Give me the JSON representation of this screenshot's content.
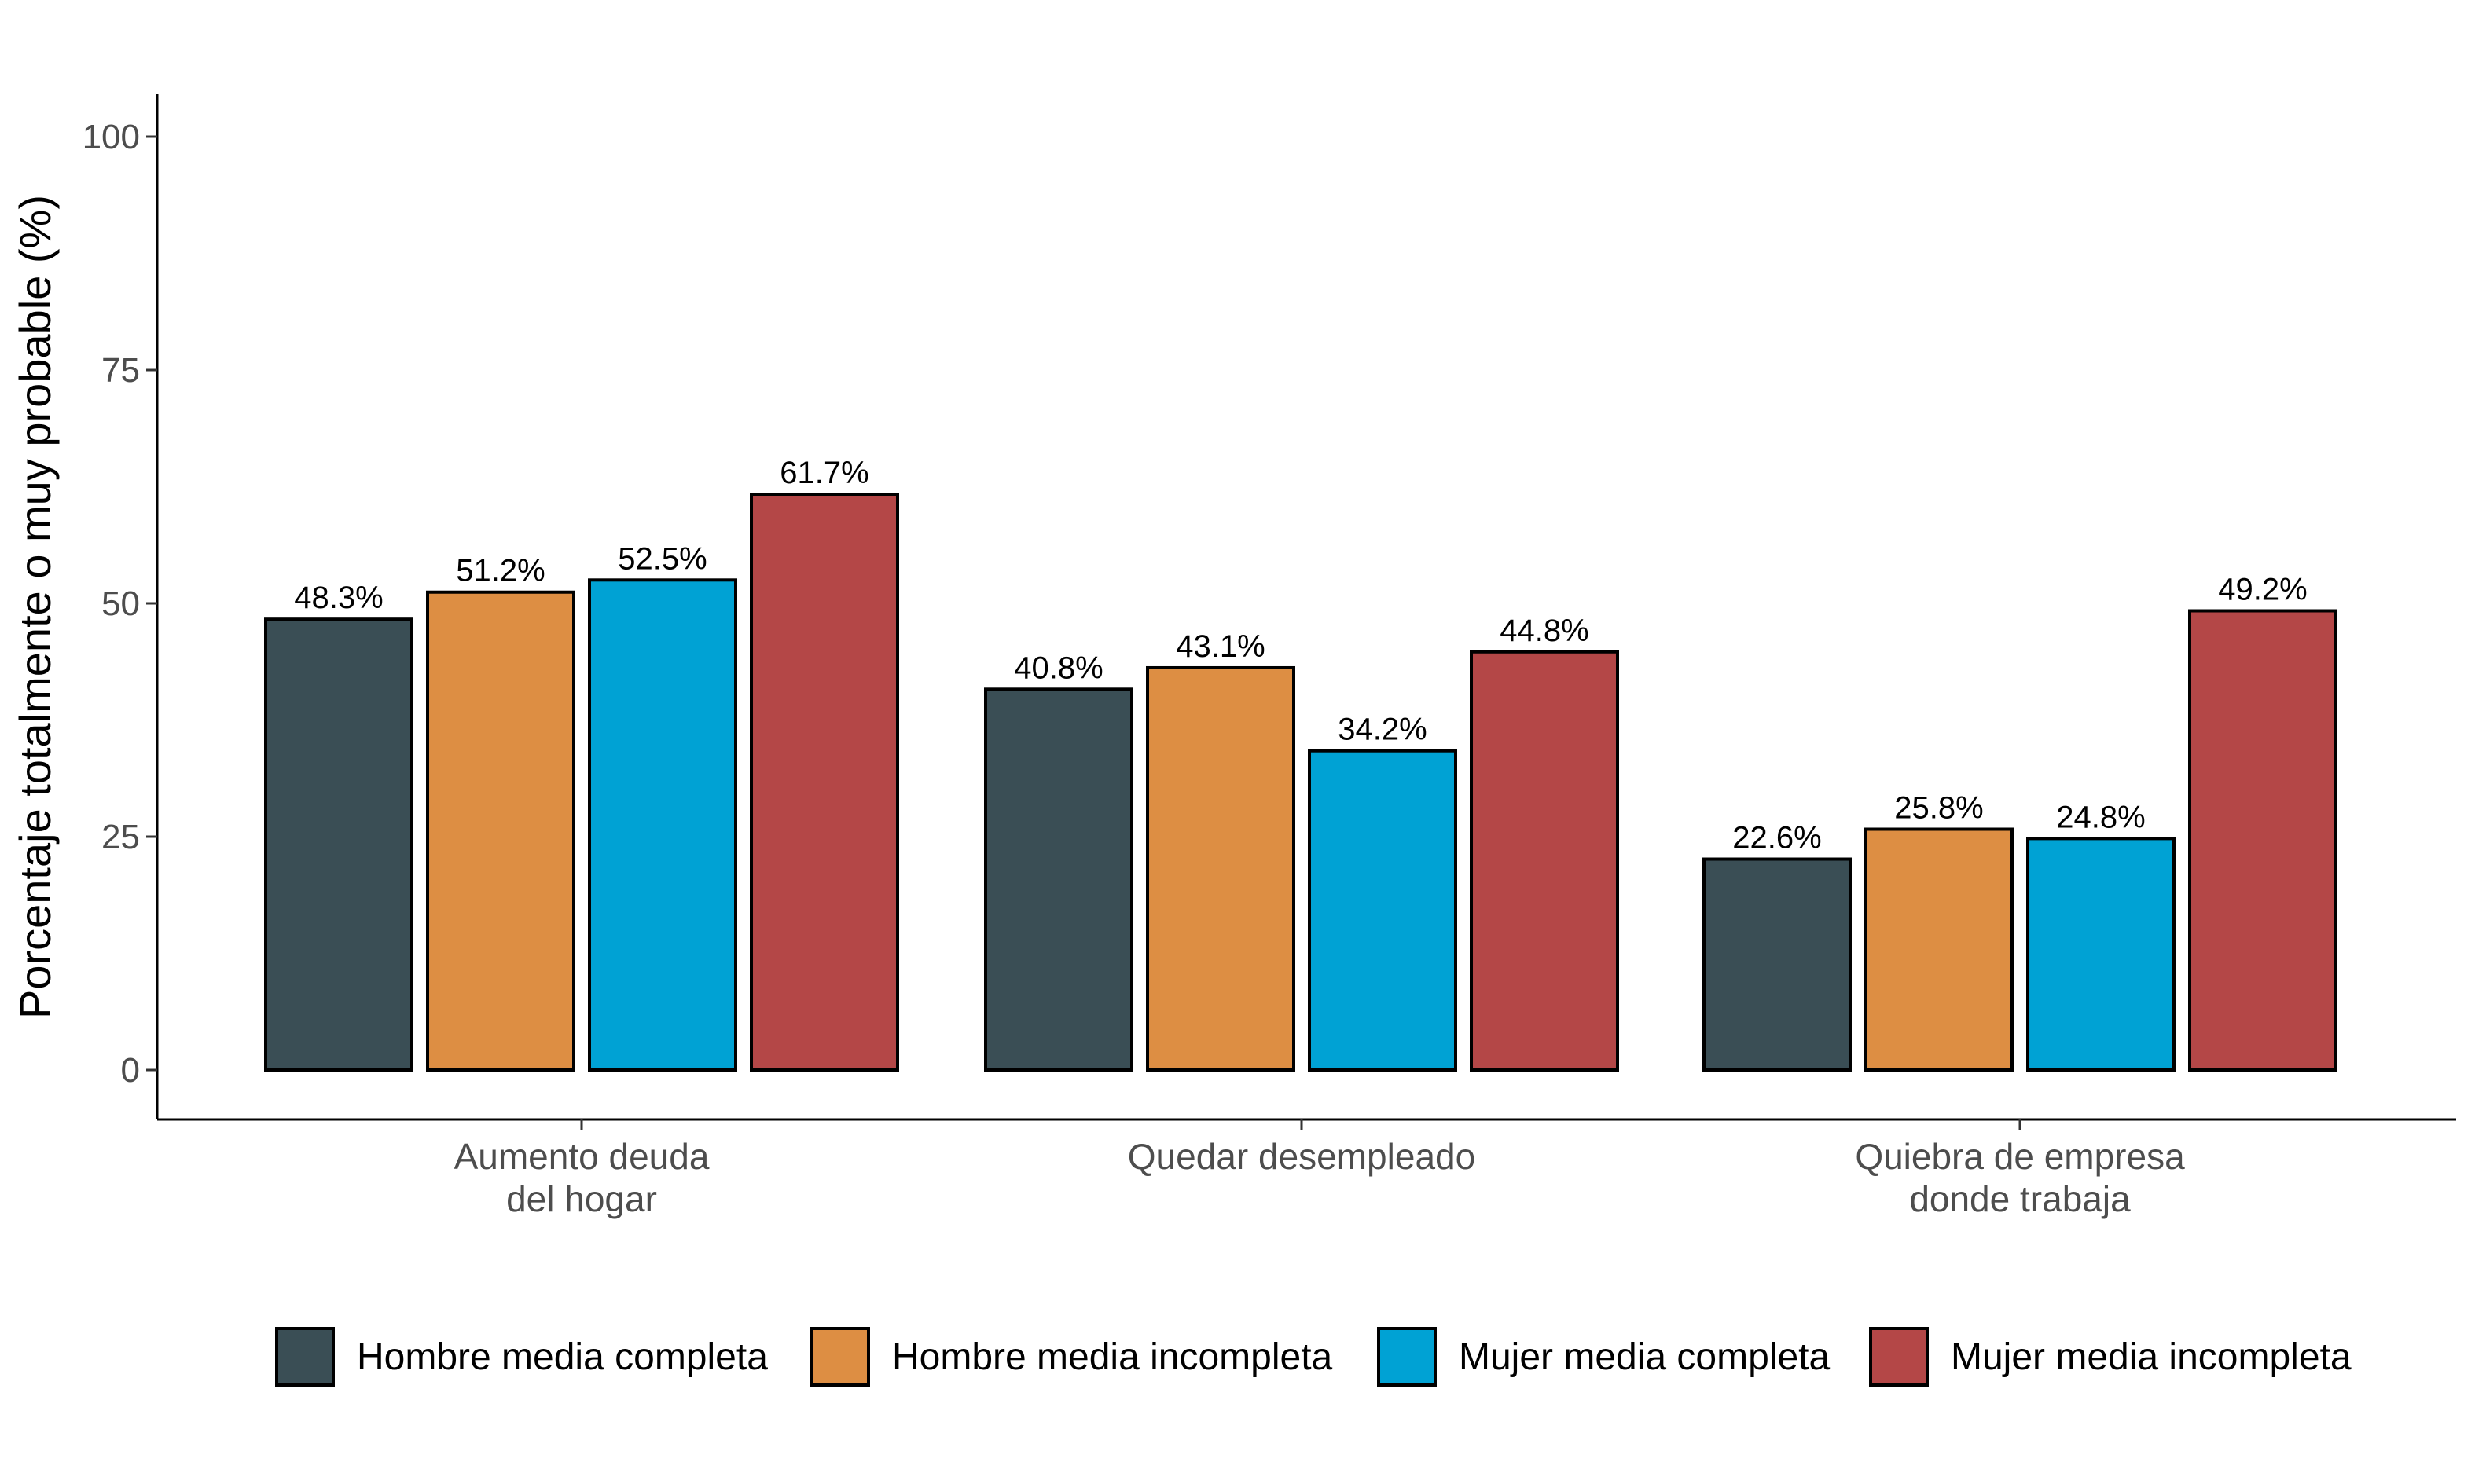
{
  "chart_data": {
    "type": "bar",
    "title": "",
    "xlabel": "",
    "ylabel": "Porcentaje totalmente o muy probable (%)",
    "ylim": [
      0,
      105
    ],
    "y_ticks": [
      "0",
      "25",
      "50",
      "75",
      "100"
    ],
    "grid": false,
    "legend_position": "bottom",
    "categories": [
      [
        "Aumento deuda",
        "del hogar"
      ],
      [
        "Quedar desempleado"
      ],
      [
        "Quiebra de empresa",
        "donde trabaja"
      ]
    ],
    "series": [
      {
        "name": "Hombre media completa",
        "color": "#3a4e55",
        "values": [
          48.3,
          40.8,
          22.6
        ],
        "labels": [
          "48.3%",
          "40.8%",
          "22.6%"
        ]
      },
      {
        "name": "Hombre media incompleta",
        "color": "#dd8e43",
        "values": [
          51.2,
          43.1,
          25.8
        ],
        "labels": [
          "51.2%",
          "43.1%",
          "25.8%"
        ]
      },
      {
        "name": "Mujer media completa",
        "color": "#00a2d4",
        "values": [
          52.5,
          34.2,
          24.8
        ],
        "labels": [
          "52.5%",
          "34.2%",
          "24.8%"
        ]
      },
      {
        "name": "Mujer media incompleta",
        "color": "#b44747",
        "values": [
          61.7,
          44.8,
          49.2
        ],
        "labels": [
          "61.7%",
          "44.8%",
          "49.2%"
        ]
      }
    ]
  }
}
